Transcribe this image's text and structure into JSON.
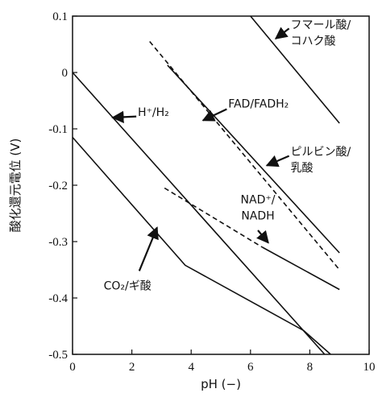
{
  "chart_data": {
    "type": "line",
    "xlabel": "pH (−)",
    "ylabel": "酸化還元電位 (V)",
    "xlim": [
      0,
      10
    ],
    "ylim": [
      -0.5,
      0.1
    ],
    "x_ticks": [
      "0",
      "2",
      "4",
      "6",
      "8",
      "10"
    ],
    "y_ticks": [
      "0.1",
      "0",
      "-0.1",
      "-0.2",
      "-0.3",
      "-0.4",
      "-0.5"
    ],
    "grid": false,
    "series": [
      {
        "name": "フマール酸/コハク酸",
        "style": "solid",
        "x": [
          6.0,
          9.0
        ],
        "y": [
          0.1,
          -0.09
        ]
      },
      {
        "name": "FAD/FADH2",
        "style": "dashed",
        "x": [
          2.6,
          9.0
        ],
        "y": [
          0.055,
          -0.35
        ]
      },
      {
        "name": "ピルビン酸/乳酸",
        "style": "solid",
        "x": [
          3.2,
          9.0
        ],
        "y": [
          0.013,
          -0.32
        ]
      },
      {
        "name": "H+/H2",
        "style": "solid",
        "x": [
          0.0,
          8.5
        ],
        "y": [
          0.0,
          -0.5
        ]
      },
      {
        "name": "NAD+/NADH",
        "style": "dashed",
        "x": [
          3.1,
          6.4
        ],
        "y": [
          -0.205,
          -0.31
        ]
      },
      {
        "name": "NAD+/NADH",
        "style": "solid",
        "x": [
          6.4,
          9.0
        ],
        "y": [
          -0.31,
          -0.385
        ]
      },
      {
        "name": "CO2/ギ酸",
        "style": "solid",
        "x": [
          0.0,
          3.8,
          7.8,
          8.7
        ],
        "y": [
          -0.115,
          -0.342,
          -0.458,
          -0.5
        ]
      }
    ],
    "annotations": [
      {
        "lines": [
          "フマール酸/",
          "コハク酸"
        ],
        "x": 7.35,
        "y": 0.085,
        "anchor": "start",
        "arrow": {
          "x1": 7.3,
          "y1": 0.078,
          "x2": 6.85,
          "y2": 0.06
        }
      },
      {
        "lines": [
          "FAD/FADH₂"
        ],
        "x": 5.25,
        "y": -0.055,
        "anchor": "start",
        "arrow": {
          "x1": 5.2,
          "y1": -0.065,
          "x2": 4.4,
          "y2": -0.085
        }
      },
      {
        "lines": [
          "H⁺/H₂"
        ],
        "x": 2.2,
        "y": -0.07,
        "anchor": "start",
        "arrow": {
          "x1": 2.15,
          "y1": -0.078,
          "x2": 1.35,
          "y2": -0.08
        }
      },
      {
        "lines": [
          "ピルビン酸/",
          "乳酸"
        ],
        "x": 7.35,
        "y": -0.14,
        "anchor": "start",
        "arrow": {
          "x1": 7.3,
          "y1": -0.148,
          "x2": 6.55,
          "y2": -0.165
        }
      },
      {
        "lines": [
          "NAD⁺/",
          "NADH"
        ],
        "x": 6.25,
        "y": -0.225,
        "anchor": "middle",
        "arrow": {
          "x1": 6.25,
          "y1": -0.28,
          "x2": 6.6,
          "y2": -0.302
        }
      },
      {
        "lines": [
          "CO₂/ギ酸"
        ],
        "x": 1.05,
        "y": -0.378,
        "anchor": "start",
        "arrow": {
          "x1": 2.25,
          "y1": -0.352,
          "x2": 2.85,
          "y2": -0.275
        }
      }
    ]
  }
}
